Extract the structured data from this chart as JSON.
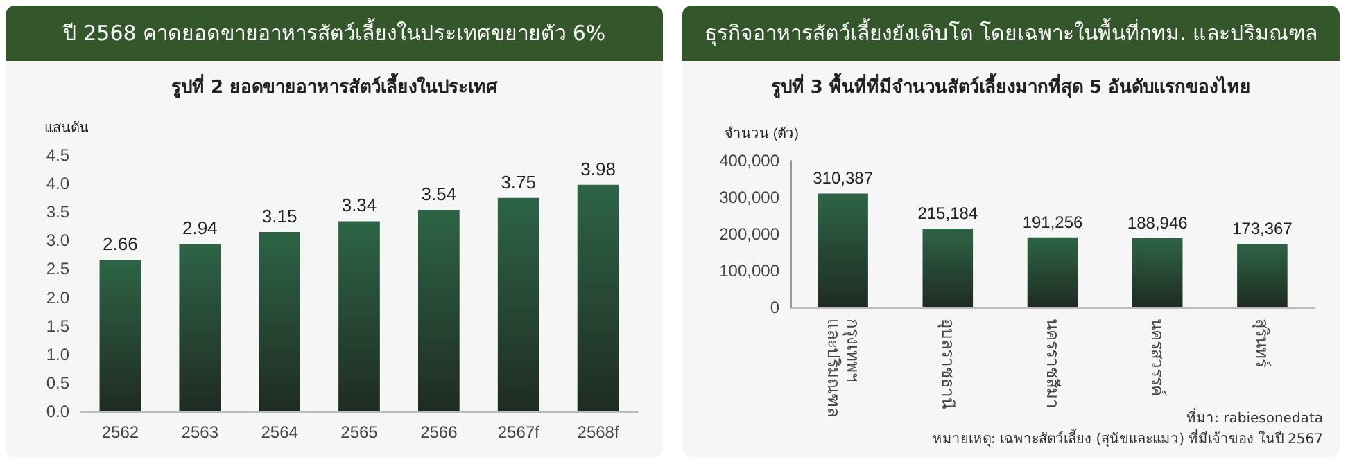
{
  "chart_data": [
    {
      "type": "bar",
      "title": "ปี 2568 คาดยอดขายอาหารสัตว์เลี้ยงในประเทศขยายตัว  6%",
      "subtitle": "รูปที่ 2 ยอดขายอาหารสัตว์เลี้ยงในประเทศ",
      "ylabel": "แสนตัน",
      "categories": [
        "2562",
        "2563",
        "2564",
        "2565",
        "2566",
        "2567f",
        "2568f"
      ],
      "values": [
        2.66,
        2.94,
        3.15,
        3.34,
        3.54,
        3.75,
        3.98
      ],
      "color": "#2d6446",
      "ylim": [
        0,
        4.5
      ],
      "yticks": [
        {
          "value": 0,
          "label": "0.0"
        },
        0.5,
        {
          "value": 1,
          "label": "1.0"
        },
        1.5,
        {
          "value": 2,
          "label": "2.0"
        },
        2.5,
        {
          "value": 3,
          "label": "3.0"
        },
        3.5,
        {
          "value": 4,
          "label": "4.0"
        },
        4.5
      ],
      "data_labels": true
    },
    {
      "type": "bar",
      "title": "ธุรกิจอาหารสัตว์เลี้ยงยังเติบโต โดยเฉพาะในพื้นที่กทม. และปริมณฑล",
      "subtitle": "รูปที่ 3 พื้นที่ที่มีจำนวนสัตว์เลี้ยงมากที่สุด 5 อันดับแรกของไทย",
      "ylabel": "จำนวน (ตัว)",
      "categories": [
        "กรุงเทพฯ และปริมณฑล",
        "อุบลราชธานี",
        "นครราชสีมา",
        "นครสวรรค์",
        "สุรินทร์"
      ],
      "values": [
        310387,
        215184,
        191256,
        188946,
        173367
      ],
      "color": "#2d6446",
      "ylim": [
        0,
        400000
      ],
      "yticks": [
        {
          "value": 0,
          "label": "0"
        },
        {
          "value": 100000,
          "label": "100,000"
        },
        {
          "value": 200000,
          "label": "200,000"
        },
        {
          "value": 300000,
          "label": "300,000"
        },
        {
          "value": 400000,
          "label": "400,000"
        }
      ],
      "value_labels": [
        "310,387",
        "215,184",
        "191,256",
        "188,946",
        "173,367"
      ],
      "annotations": [
        "ที่มา: rabiesonedata",
        "หมายเหตุ: เฉพาะสัตว์เลี้ยง (สุนัขและแมว) ที่มีเจ้าของ ในปี 2567"
      ]
    }
  ]
}
